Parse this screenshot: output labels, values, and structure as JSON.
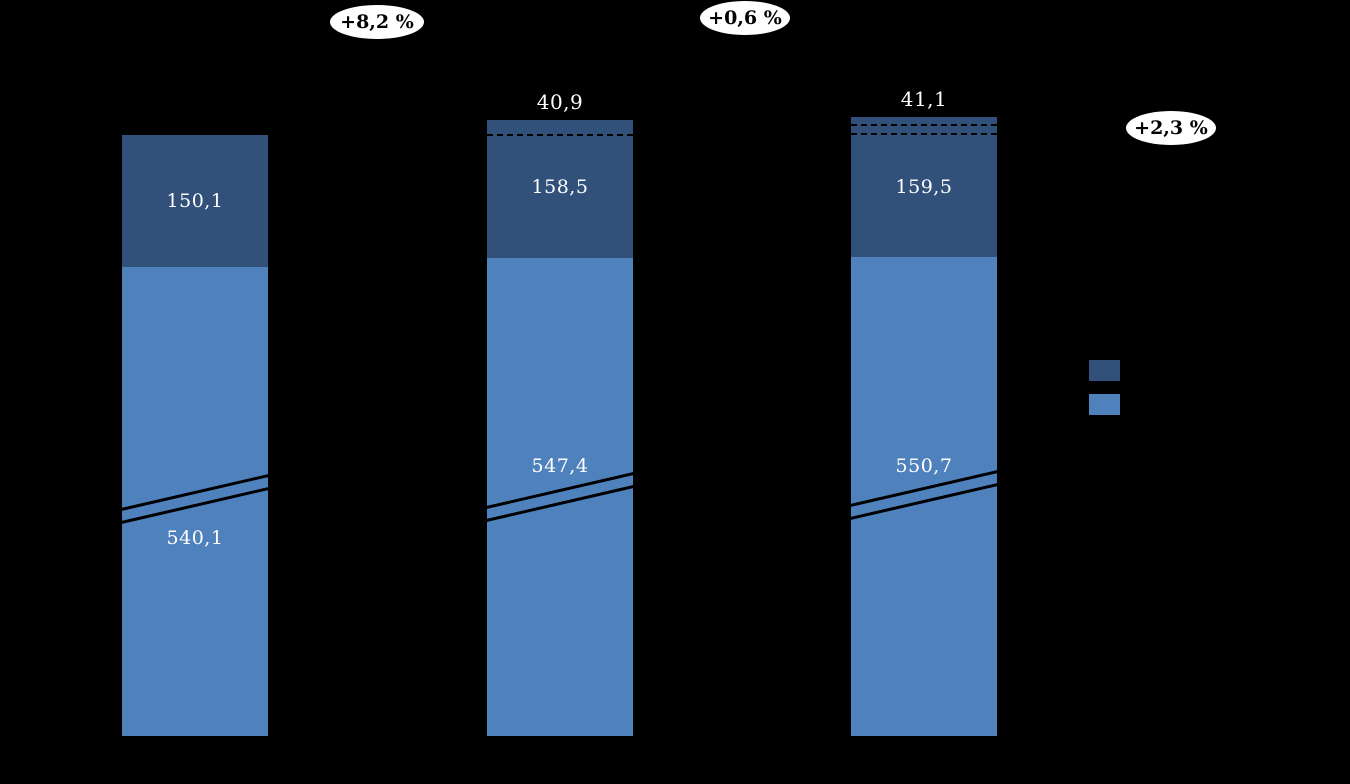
{
  "colors": {
    "background": "#000000",
    "dark_blue": "#31507a",
    "light_blue": "#4f81bd",
    "badge_background": "#ffffff",
    "badge_text": "#000000",
    "value_text": "#ffffff"
  },
  "chart_data": {
    "type": "bar",
    "subtype": "stacked-columns-with-axis-break",
    "categories": [
      "",
      "",
      ""
    ],
    "series": [
      {
        "name": "dark-blue-segment",
        "color": "#31507a",
        "values": [
          150.1,
          158.5,
          159.5
        ]
      },
      {
        "name": "light-blue-segment",
        "color": "#4f81bd",
        "values": [
          540.1,
          547.4,
          550.7
        ]
      }
    ],
    "segment_labels": {
      "dark": [
        "150,1",
        "158,5",
        "159,5"
      ],
      "light": [
        "540,1",
        "547,4",
        "550,7"
      ]
    },
    "top_labels": [
      "",
      "40,9",
      "41,1"
    ],
    "growth_badges": [
      "+8,2 %",
      "+0,6 %",
      "+2,3 %"
    ],
    "axis_break": true,
    "dashed_top_strips": [
      false,
      true,
      true
    ],
    "legend": [
      {
        "name": "dark-blue-series",
        "color": "#31507a",
        "label": ""
      },
      {
        "name": "light-blue-series",
        "color": "#4f81bd",
        "label": ""
      }
    ],
    "title": "",
    "xlabel": "",
    "ylabel": ""
  }
}
